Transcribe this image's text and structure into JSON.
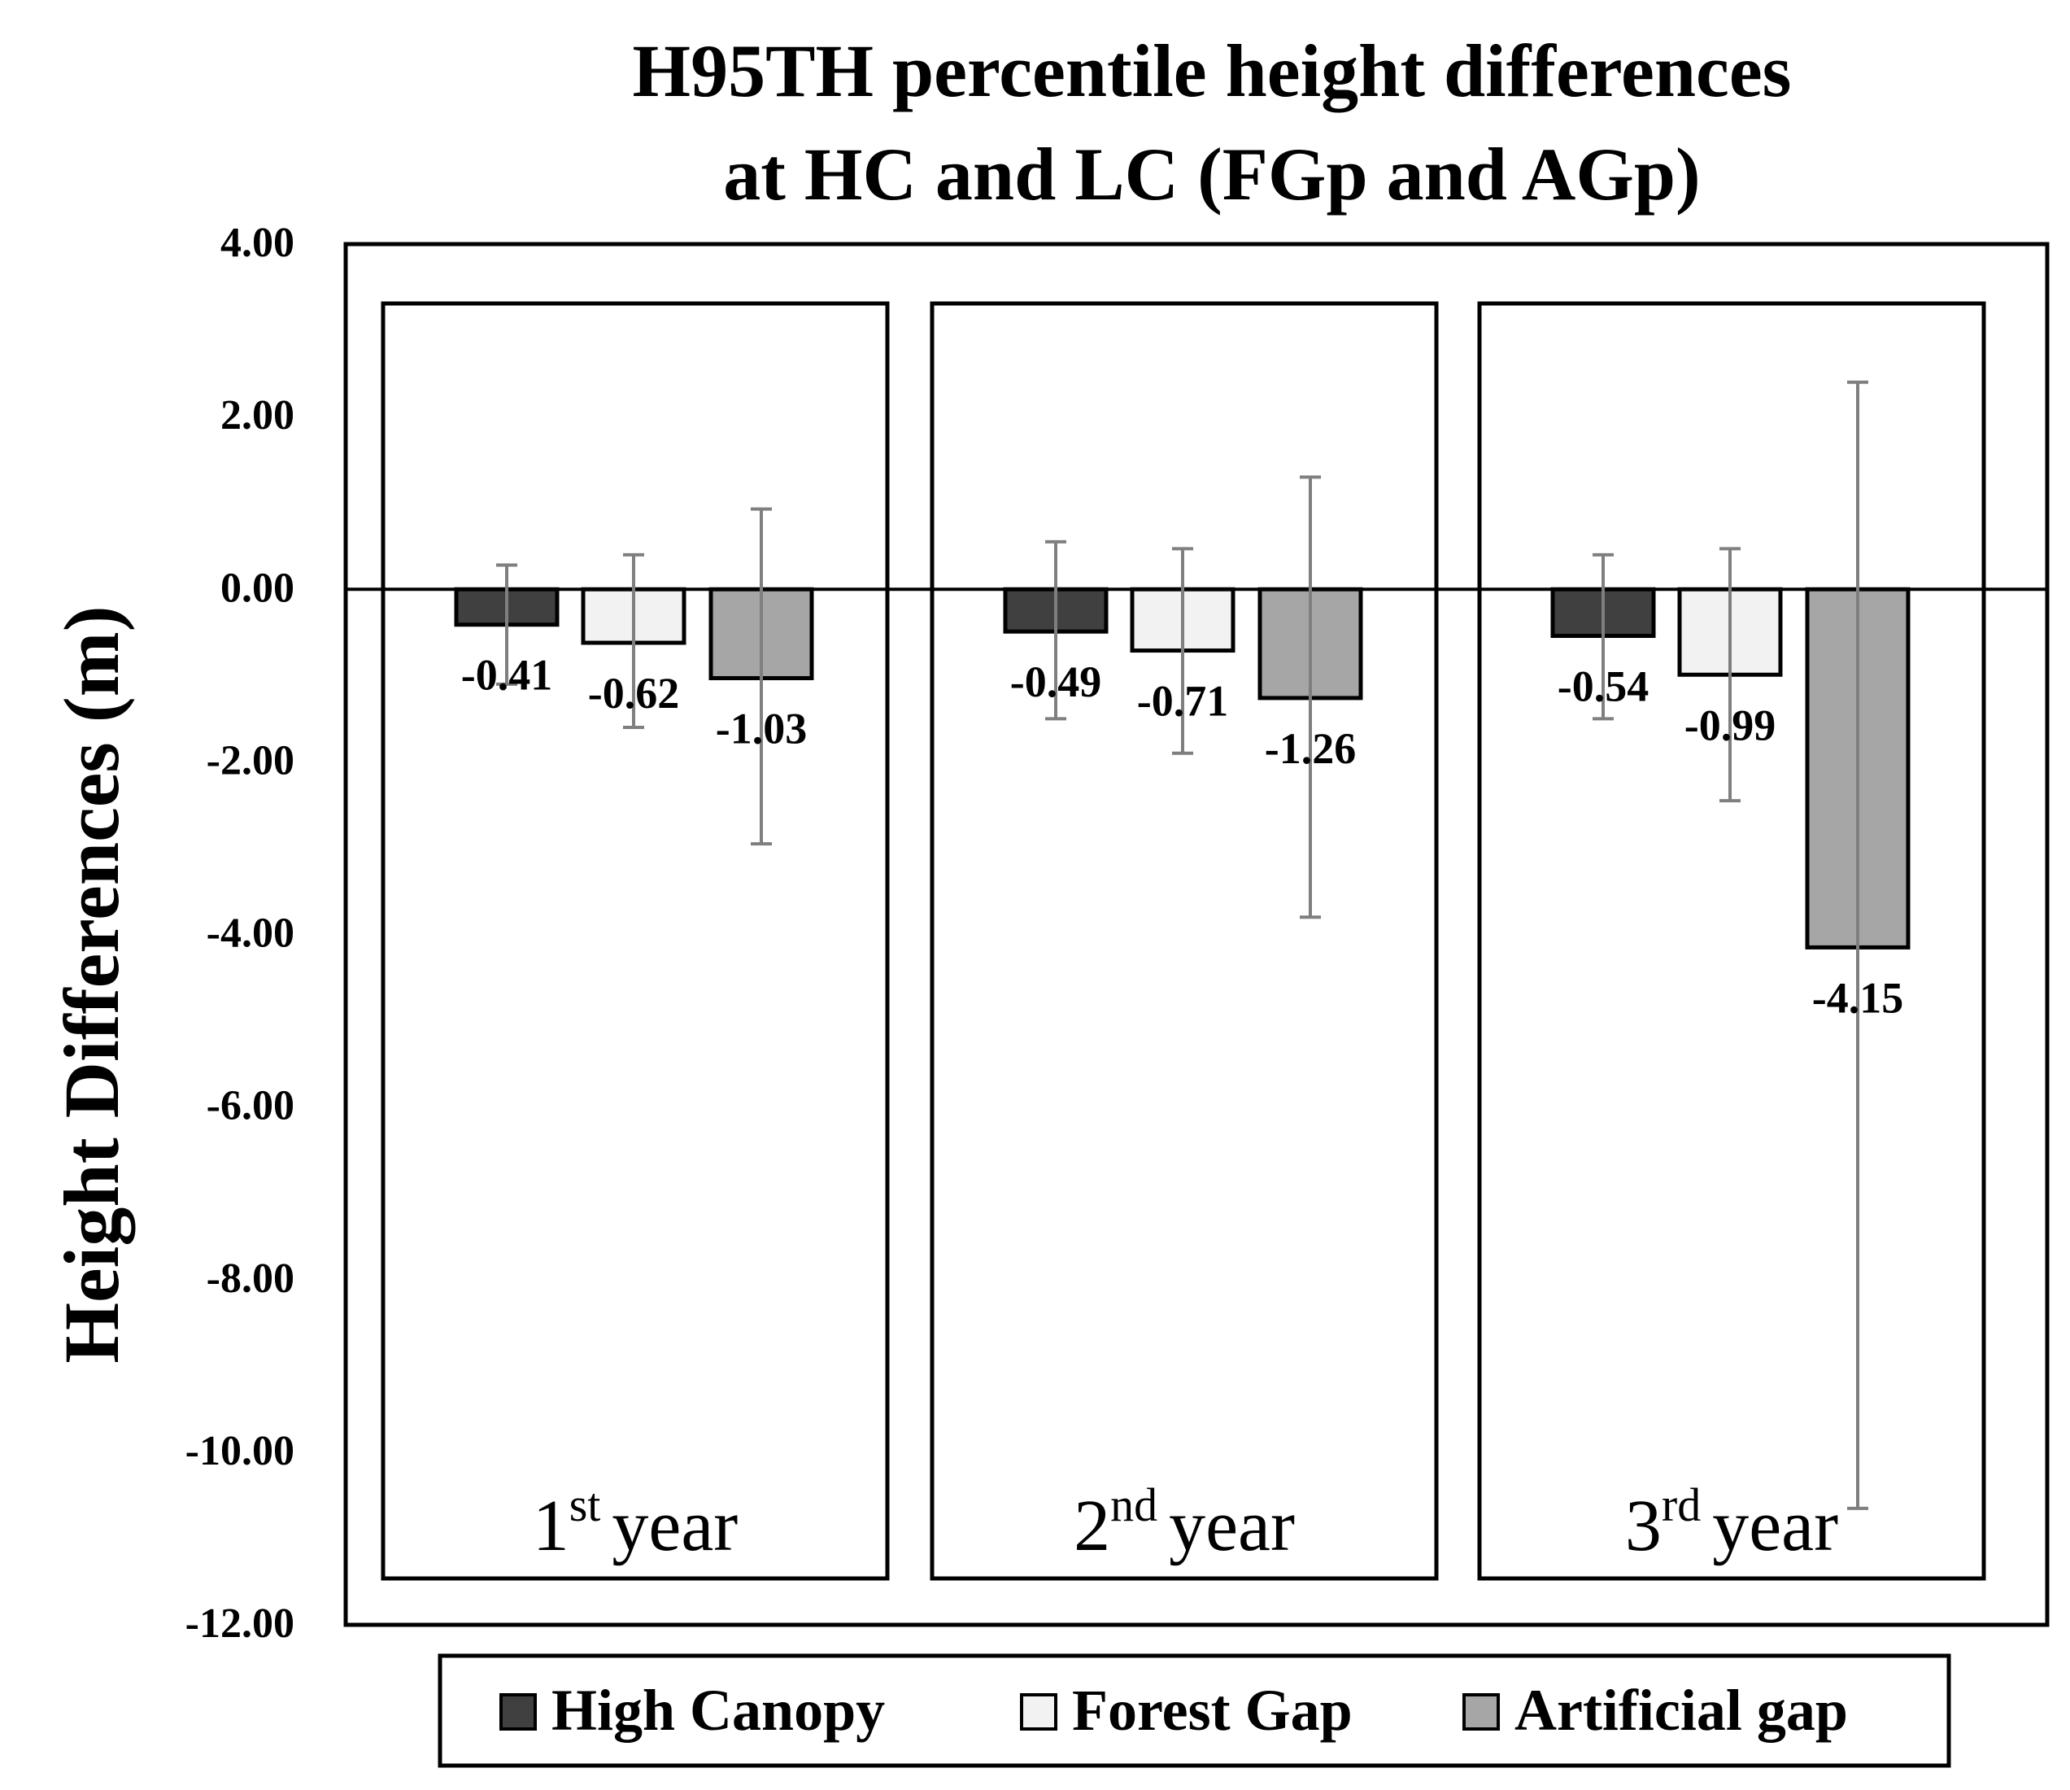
{
  "chart_data": {
    "type": "bar",
    "title_lines": [
      "H95TH percentile height differences",
      "at HC and LC (FGp and AGp)"
    ],
    "ylabel": "Height Differences (m)",
    "ylim": [
      -12,
      4
    ],
    "yticks": [
      4,
      2,
      0,
      -2,
      -4,
      -6,
      -8,
      -10,
      -12
    ],
    "ytick_labels": [
      "4.00",
      "2.00",
      "0.00",
      "-2.00",
      "-4.00",
      "-6.00",
      "-8.00",
      "-10.00",
      "-12.00"
    ],
    "groups": [
      {
        "num": "1",
        "sup": "st",
        "word": "year"
      },
      {
        "num": "2",
        "sup": "nd",
        "word": "year"
      },
      {
        "num": "3",
        "sup": "rd",
        "word": "year"
      }
    ],
    "series": [
      {
        "name": "High Canopy",
        "color": "#404040",
        "values": [
          -0.41,
          -0.49,
          -0.54
        ],
        "labels": [
          "-0.41",
          "-0.49",
          "-0.54"
        ],
        "err_low": [
          -1.1,
          -1.5,
          -1.5
        ],
        "err_high": [
          0.28,
          0.55,
          0.4
        ]
      },
      {
        "name": "Forest Gap",
        "color": "#f2f2f2",
        "values": [
          -0.62,
          -0.71,
          -0.99
        ],
        "labels": [
          "-0.62",
          "-0.71",
          "-0.99"
        ],
        "err_low": [
          -1.6,
          -1.9,
          -2.45
        ],
        "err_high": [
          0.4,
          0.47,
          0.47
        ]
      },
      {
        "name": "Artificial gap",
        "color": "#a6a6a6",
        "values": [
          -1.03,
          -1.26,
          -4.15
        ],
        "labels": [
          "-1.03",
          "-1.26",
          "-4.15"
        ],
        "err_low": [
          -2.95,
          -3.8,
          -10.65
        ],
        "err_high": [
          0.93,
          1.3,
          2.4
        ]
      }
    ],
    "legend_position": "bottom",
    "errorbar_color": "#7f7f7f"
  }
}
